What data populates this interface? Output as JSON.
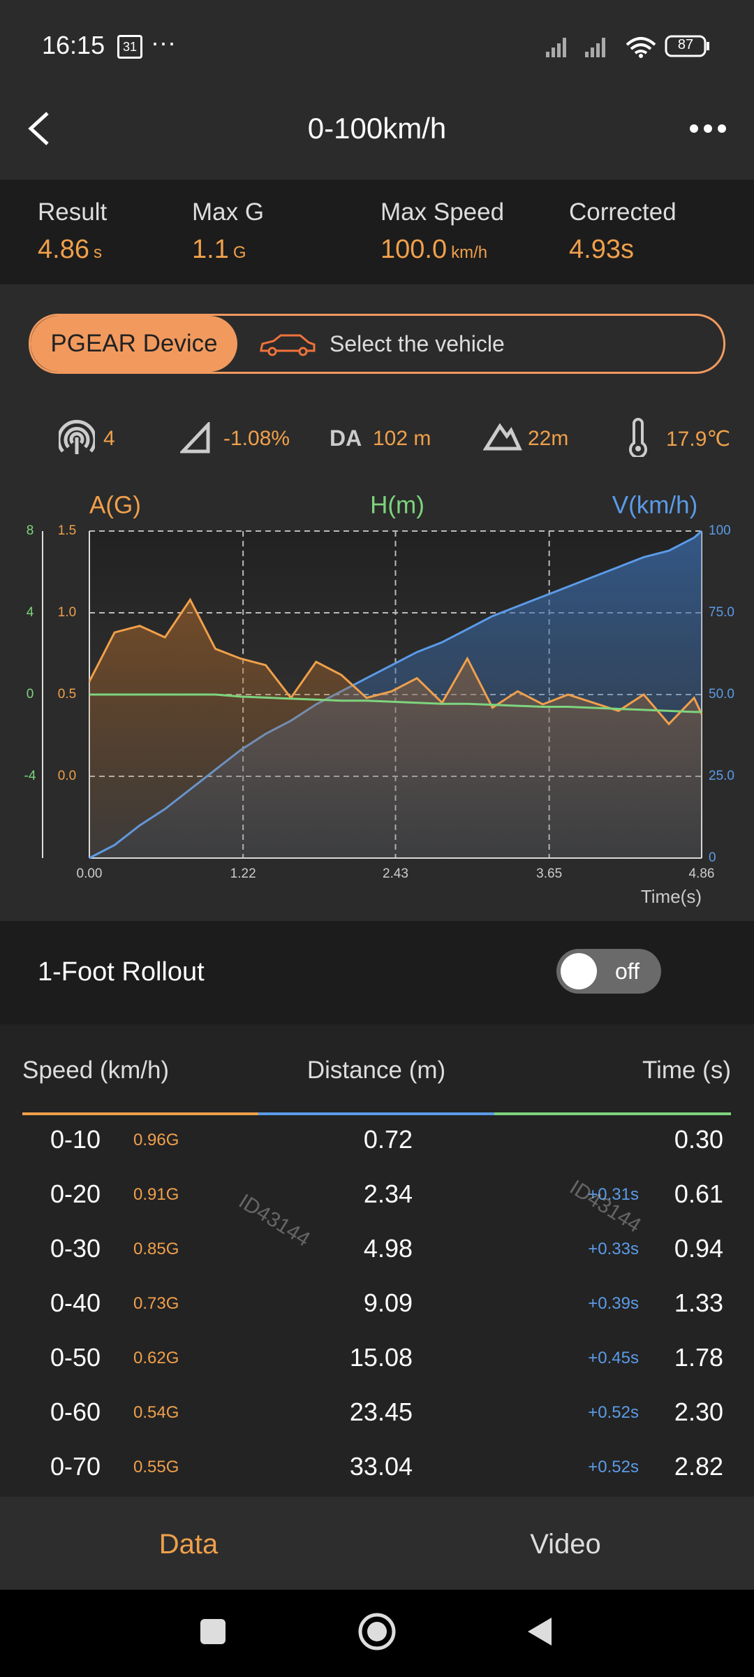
{
  "status_bar": {
    "time": "16:15",
    "calendar": "31",
    "more": "···",
    "battery": "87"
  },
  "header": {
    "title": "0-100km/h"
  },
  "summary": [
    {
      "label": "Result",
      "value": "4.86",
      "unit": "s"
    },
    {
      "label": "Max G",
      "value": "1.1",
      "unit": "G"
    },
    {
      "label": "Max Speed",
      "value": "100.0",
      "unit": "km/h"
    },
    {
      "label": "Corrected",
      "value": "4.93s"
    }
  ],
  "device": {
    "active": "PGEAR Device",
    "vehicle": "Select the vehicle"
  },
  "conditions": {
    "satellites": "4",
    "slope": "-1.08%",
    "da_label": "DA",
    "da": "102 m",
    "altitude": "22m",
    "temperature": "17.9℃"
  },
  "chart_data": {
    "type": "line",
    "xlabel": "Time(s)",
    "x": [
      0,
      0.2,
      0.4,
      0.6,
      0.8,
      1.0,
      1.2,
      1.4,
      1.6,
      1.8,
      2.0,
      2.2,
      2.4,
      2.6,
      2.8,
      3.0,
      3.2,
      3.4,
      3.6,
      3.8,
      4.0,
      4.2,
      4.4,
      4.6,
      4.8,
      4.86
    ],
    "xlim": [
      0,
      4.86
    ],
    "xticks": [
      {
        "value": 0,
        "label": "0.00"
      },
      1.22,
      2.43,
      3.65,
      4.86
    ],
    "ylim": [
      -0.5,
      1.5
    ],
    "yticks": [
      {
        "value": 0,
        "label": "0.0"
      },
      0.5,
      {
        "value": 1,
        "label": "1.0"
      },
      1.5
    ],
    "y2lim": [
      0,
      100
    ],
    "y2ticks": [
      0,
      {
        "value": 25,
        "label": "25.0"
      },
      {
        "value": 50,
        "label": "50.0"
      },
      {
        "value": 75,
        "label": "75.0"
      },
      100
    ],
    "y3lim": [
      -8,
      8
    ],
    "y3ticks": [
      -4,
      0,
      4,
      8
    ],
    "grid": true,
    "series": [
      {
        "name": "A(G)",
        "color": "#f0a04b",
        "values": [
          0.58,
          0.88,
          0.92,
          0.85,
          1.08,
          0.78,
          0.72,
          0.68,
          0.48,
          0.7,
          0.62,
          0.48,
          0.52,
          0.6,
          0.45,
          0.72,
          0.42,
          0.52,
          0.44,
          0.5,
          0.45,
          0.4,
          0.5,
          0.32,
          0.48,
          0.38
        ]
      },
      {
        "name": "H(m)",
        "color": "#7ed47e",
        "axis": "y3",
        "values": [
          0,
          0,
          0,
          0,
          0,
          0,
          -0.1,
          -0.15,
          -0.2,
          -0.25,
          -0.3,
          -0.3,
          -0.35,
          -0.4,
          -0.45,
          -0.45,
          -0.5,
          -0.55,
          -0.6,
          -0.6,
          -0.65,
          -0.7,
          -0.75,
          -0.8,
          -0.85,
          -0.85
        ]
      },
      {
        "name": "V(km/h)",
        "color": "#5b9be8",
        "axis": "y2",
        "values": [
          0,
          4,
          10,
          15,
          21,
          27,
          33,
          38,
          42,
          47,
          51,
          55,
          59,
          63,
          66,
          70,
          74,
          77,
          80,
          83,
          86,
          89,
          92,
          94,
          98,
          100
        ]
      }
    ]
  },
  "rollout": {
    "label": "1-Foot Rollout",
    "toggle": "off"
  },
  "table": {
    "headers": [
      "Speed (km/h)",
      "Distance (m)",
      "Time (s)"
    ],
    "rows": [
      [
        "0-10",
        "0.96G",
        "0.72",
        null,
        "0.30"
      ],
      [
        "0-20",
        "0.91G",
        "2.34",
        "+0.31s",
        "0.61"
      ],
      [
        "0-30",
        "0.85G",
        "4.98",
        "+0.33s",
        "0.94"
      ],
      [
        "0-40",
        "0.73G",
        "9.09",
        "+0.39s",
        "1.33"
      ],
      [
        "0-50",
        "0.62G",
        "15.08",
        "+0.45s",
        "1.78"
      ],
      [
        "0-60",
        "0.54G",
        "23.45",
        "+0.52s",
        "2.30"
      ],
      [
        "0-70",
        "0.55G",
        "33.04",
        "+0.52s",
        "2.82"
      ]
    ],
    "watermarks": [
      "ID43144",
      "ID43144"
    ]
  },
  "tabs": [
    "Data",
    "Video"
  ]
}
